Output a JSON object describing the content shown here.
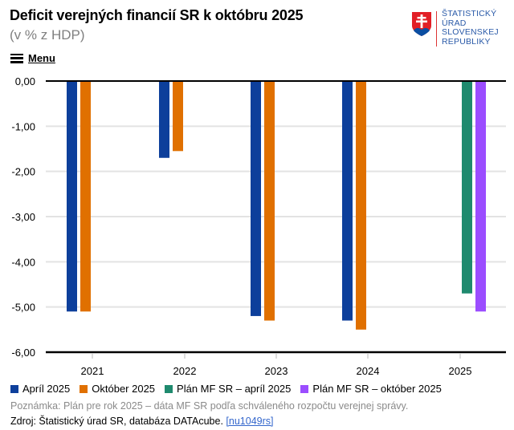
{
  "header": {
    "title": "Deficit verejných financií SR k októbru 2025",
    "subtitle": "(v % z HDP)",
    "menu_label": "Menu"
  },
  "logo": {
    "lines": [
      "ŠTATISTICKÝ",
      "ÚRAD",
      "SLOVENSKEJ",
      "REPUBLIKY"
    ]
  },
  "chart_data": {
    "type": "bar",
    "title": "Deficit verejných financií SR k októbru 2025",
    "subtitle": "(v % z HDP)",
    "xlabel": "",
    "ylabel": "",
    "ylim": [
      -6,
      0
    ],
    "yticks": [
      0,
      -1,
      -2,
      -3,
      -4,
      -5,
      -6
    ],
    "ytick_labels": [
      "0,00",
      "-1,00",
      "-2,00",
      "-3,00",
      "-4,00",
      "-5,00",
      "-6,00"
    ],
    "grid": true,
    "legend_position": "bottom",
    "categories": [
      "2021",
      "2022",
      "2023",
      "2024",
      "2025"
    ],
    "series": [
      {
        "name": "Apríl 2025",
        "color": "#0d3f9b",
        "values": [
          -5.1,
          -1.7,
          -5.2,
          -5.3,
          null
        ]
      },
      {
        "name": "Október 2025",
        "color": "#e07000",
        "values": [
          -5.1,
          -1.55,
          -5.3,
          -5.5,
          null
        ]
      },
      {
        "name": "Plán MF SR – apríl 2025",
        "color": "#1f8a6e",
        "values": [
          null,
          null,
          null,
          null,
          -4.7
        ]
      },
      {
        "name": "Plán MF SR – október 2025",
        "color": "#9b4dff",
        "values": [
          null,
          null,
          null,
          null,
          -5.1
        ]
      }
    ]
  },
  "footer": {
    "note": "Poznámka: Plán pre rok 2025 – dáta MF SR podľa schváleného rozpočtu verejnej správy.",
    "source_text": "Zdroj: Štatistický úrad SR, databáza DATAcube.",
    "source_link": "[nu1049rs]"
  }
}
